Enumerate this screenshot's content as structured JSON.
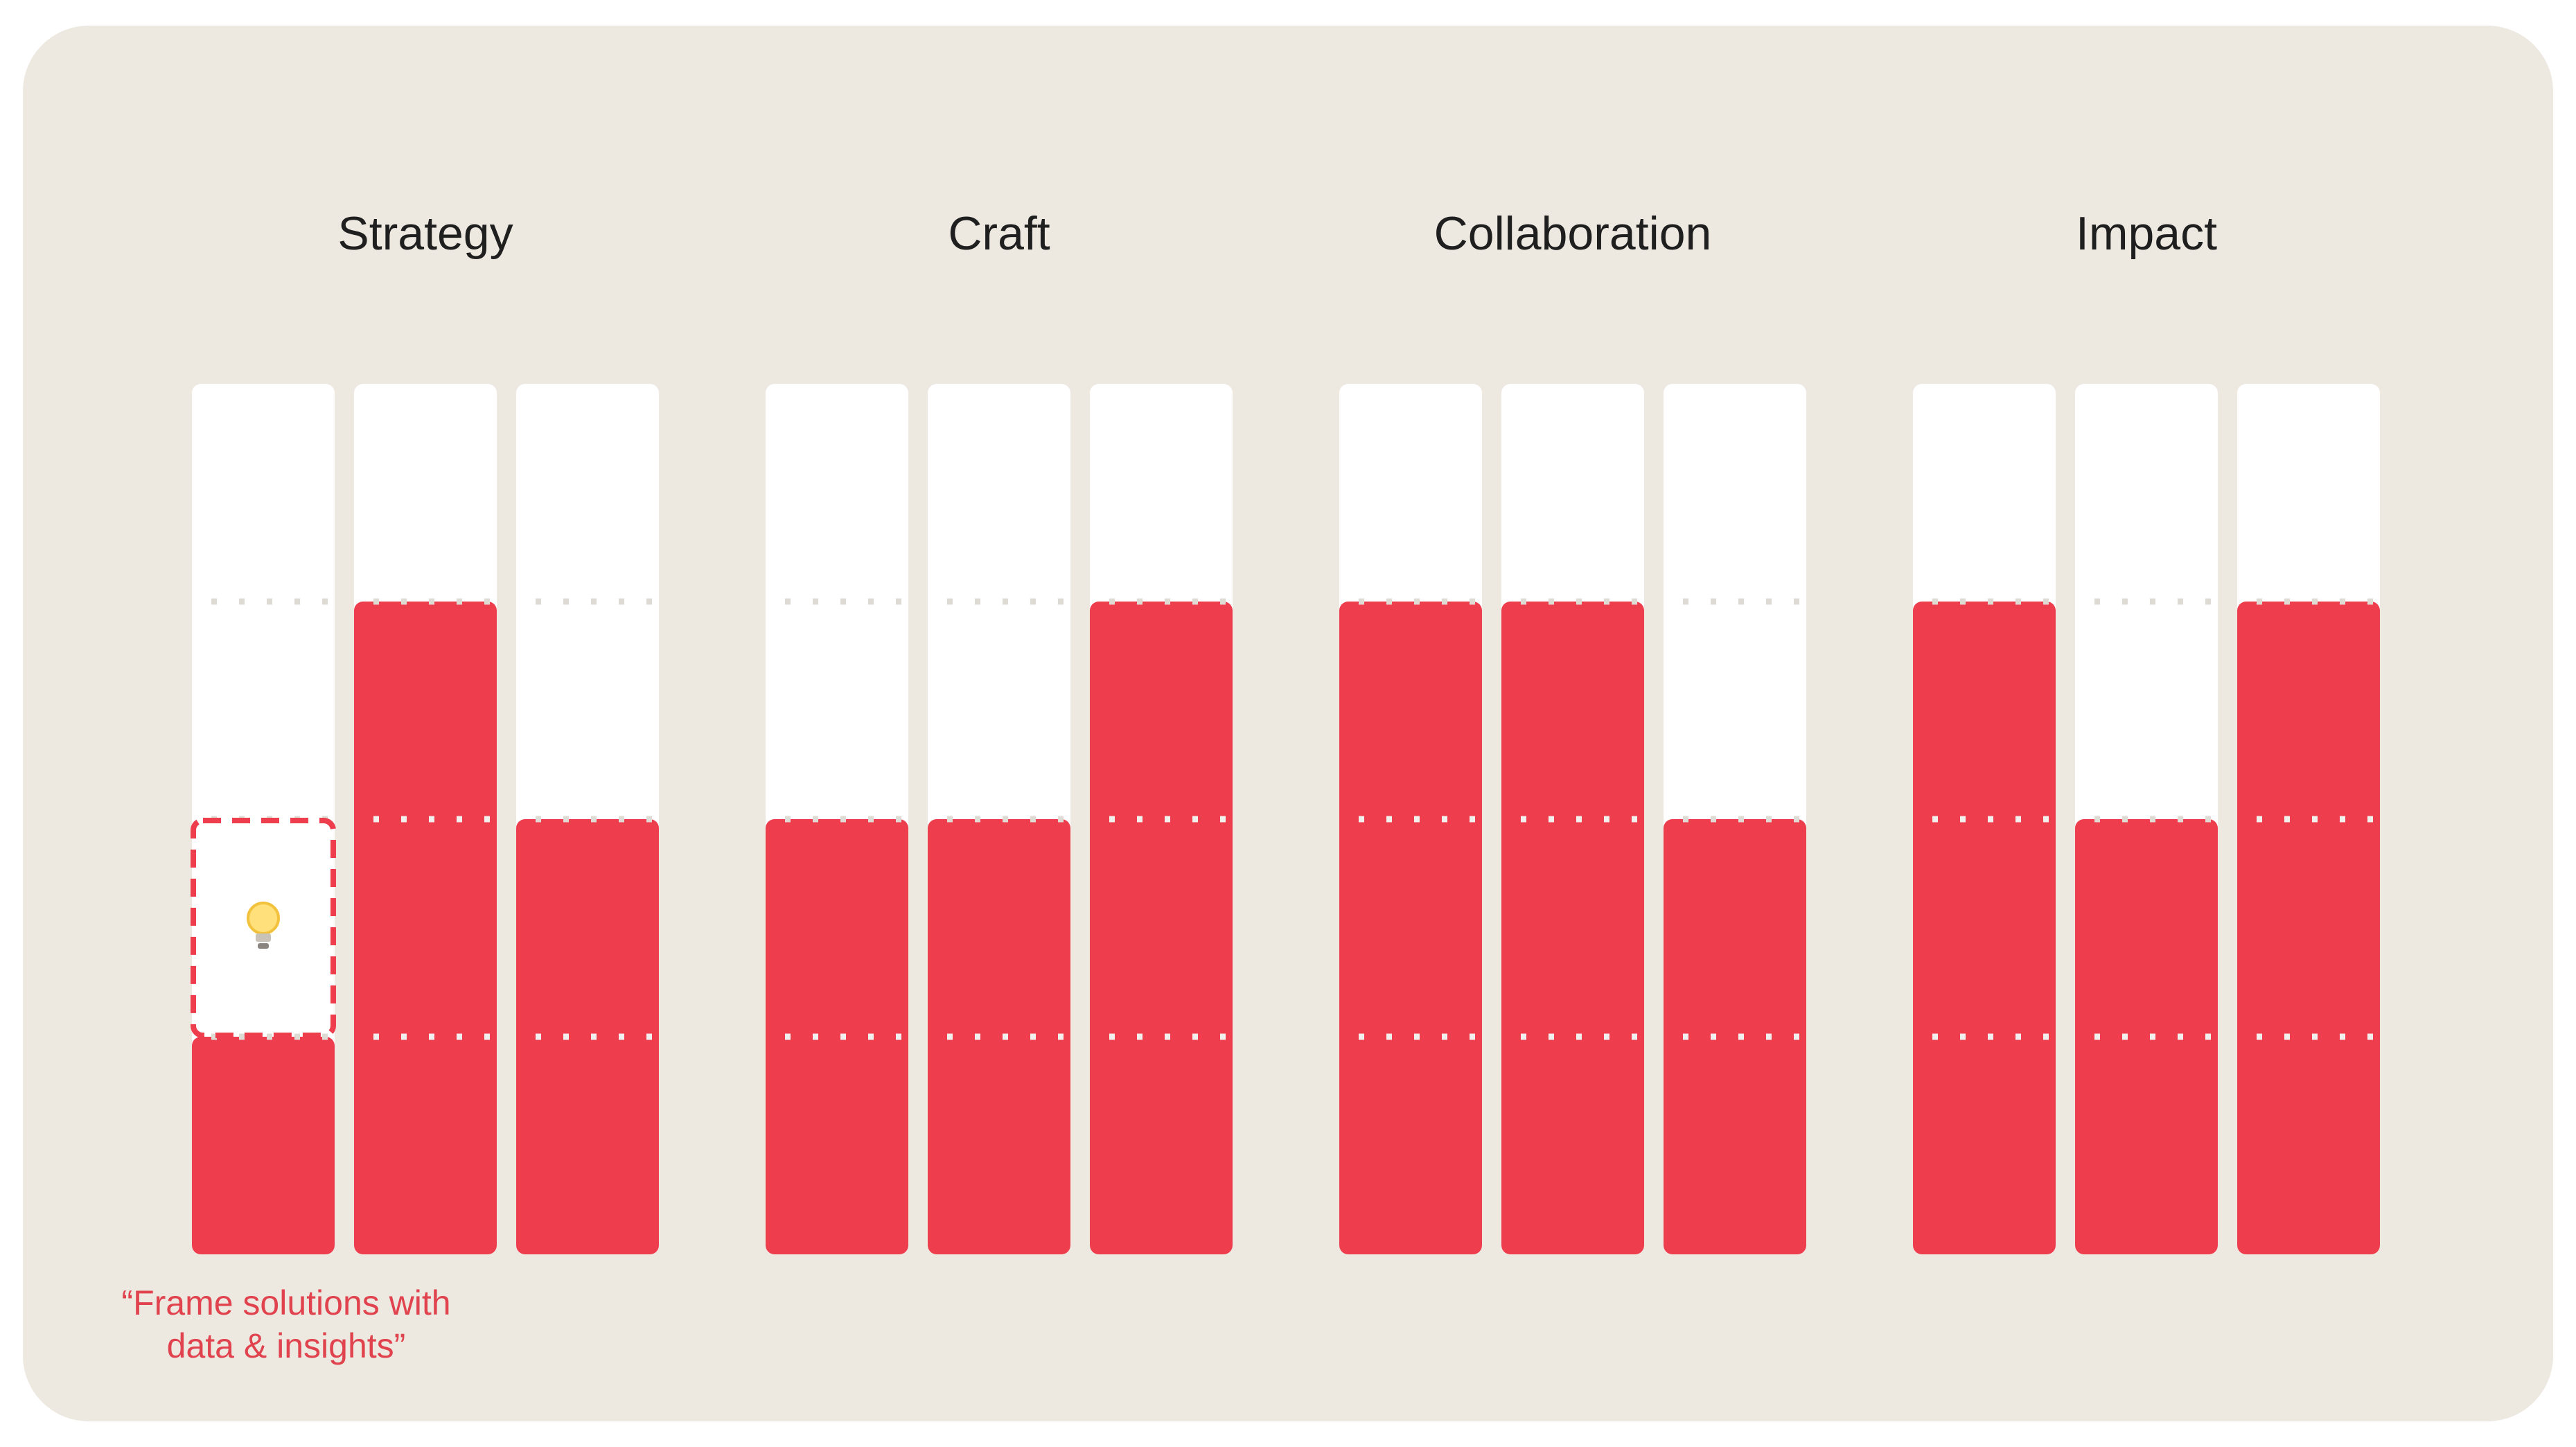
{
  "chart_data": {
    "type": "bar",
    "title": "",
    "xlabel": "",
    "ylabel": "",
    "ylim": [
      0,
      4
    ],
    "gridlines": [
      1,
      2,
      3
    ],
    "colors": {
      "bar": "#ee3e4e",
      "track": "#ffffff",
      "background": "#ede8e0",
      "gridline": "#dedbd5"
    },
    "groups": [
      {
        "name": "Strategy",
        "values": [
          1,
          3,
          2
        ]
      },
      {
        "name": "Craft",
        "values": [
          2,
          2,
          3
        ]
      },
      {
        "name": "Collaboration",
        "values": [
          3,
          3,
          2
        ]
      },
      {
        "name": "Impact",
        "values": [
          3,
          2,
          3
        ]
      }
    ],
    "highlight": {
      "group": 0,
      "bar": 0,
      "from": 1,
      "to": 2,
      "icon": "lightbulb-icon",
      "line1": "“Frame solutions with",
      "line2": "data & insights”"
    }
  }
}
